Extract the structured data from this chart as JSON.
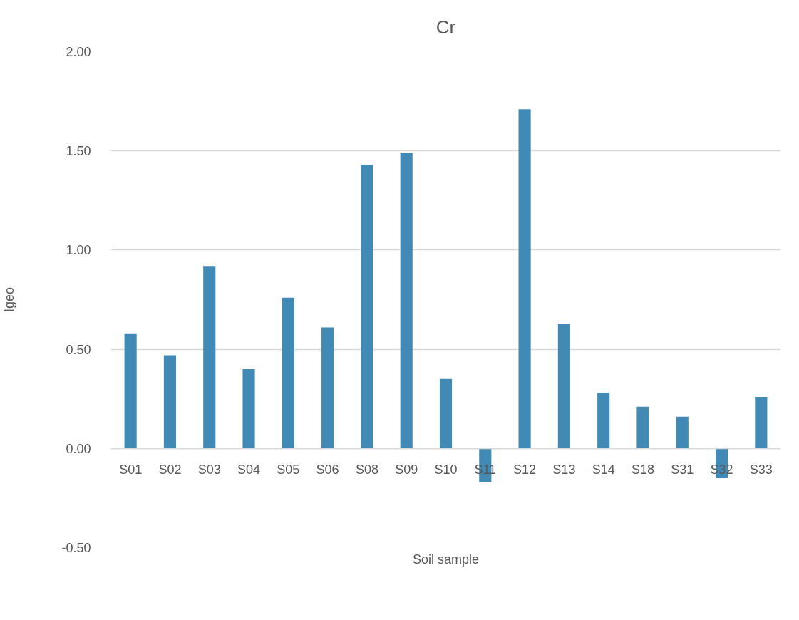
{
  "chart_data": {
    "type": "bar",
    "title": "Cr",
    "xlabel": "Soil sample",
    "ylabel": "Igeo",
    "categories": [
      "S01",
      "S02",
      "S03",
      "S04",
      "S05",
      "S06",
      "S08",
      "S09",
      "S10",
      "S11",
      "S12",
      "S13",
      "S14",
      "S18",
      "S31",
      "S32",
      "S33"
    ],
    "values": [
      0.58,
      0.47,
      0.92,
      0.4,
      0.76,
      0.61,
      1.43,
      1.49,
      0.35,
      -0.17,
      1.71,
      0.63,
      0.28,
      0.21,
      0.16,
      -0.15,
      0.26
    ],
    "color": "#418ab5",
    "ylim": [
      -0.5,
      2.0
    ],
    "yticks": [
      {
        "value": -0.5,
        "label": "-0.50"
      },
      {
        "value": 0,
        "label": "0.00"
      },
      {
        "value": 0.5,
        "label": "0.50"
      },
      {
        "value": 1.0,
        "label": "1.00"
      },
      {
        "value": 1.5,
        "label": "1.50"
      },
      {
        "value": 2.0,
        "label": "2.00"
      }
    ],
    "grid": "y"
  }
}
